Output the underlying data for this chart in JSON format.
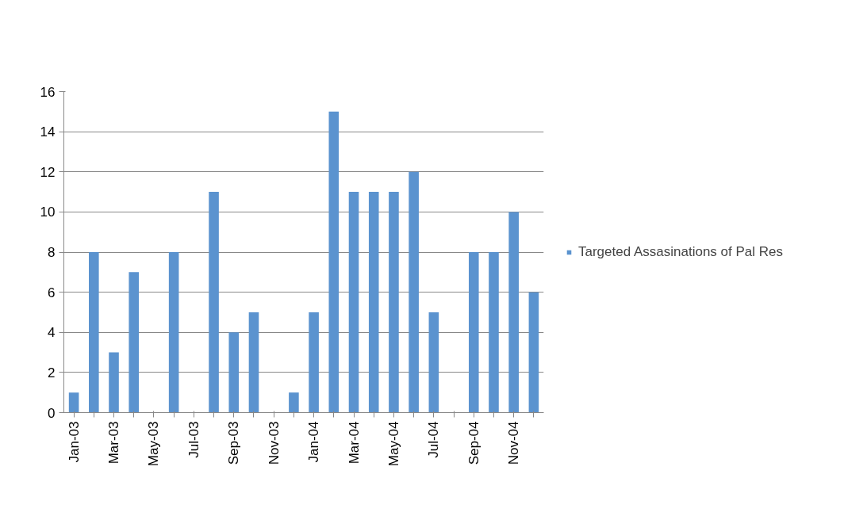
{
  "chart_data": {
    "type": "bar",
    "categories": [
      "Jan-03",
      null,
      "Mar-03",
      null,
      "May-03",
      null,
      "Jul-03",
      null,
      "Sep-03",
      null,
      "Nov-03",
      null,
      "Jan-04",
      null,
      "Mar-04",
      null,
      "May-04",
      null,
      "Jul-04",
      null,
      "Sep-04",
      null,
      "Nov-04",
      null
    ],
    "series": [
      {
        "name": "Targeted Assasinations of Pal Res",
        "color": "#5b93cf",
        "values": [
          1,
          8,
          3,
          7,
          0,
          8,
          0,
          11,
          4,
          5,
          0,
          1,
          5,
          15,
          11,
          11,
          11,
          12,
          5,
          0,
          8,
          8,
          10,
          6
        ]
      }
    ],
    "ylim": [
      0,
      16
    ],
    "yticks": [
      0,
      2,
      4,
      6,
      8,
      10,
      12,
      14,
      16
    ],
    "grid": "y",
    "legend": "right"
  }
}
